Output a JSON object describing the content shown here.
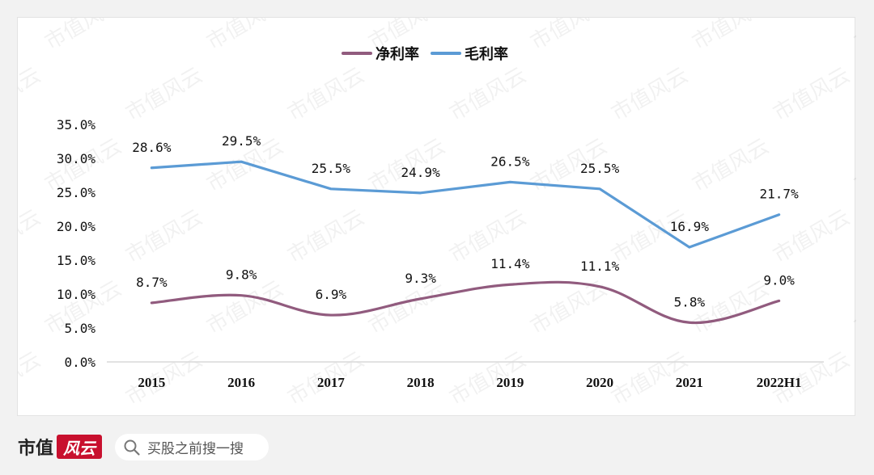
{
  "chart_data": {
    "type": "line",
    "title": "",
    "categories": [
      "2015",
      "2016",
      "2017",
      "2018",
      "2019",
      "2020",
      "2021",
      "2022H1"
    ],
    "series": [
      {
        "name": "净利率",
        "color": "#915b7e",
        "values": [
          8.7,
          9.8,
          6.9,
          9.3,
          11.4,
          11.1,
          5.8,
          9.0
        ],
        "labels": [
          "8.7%",
          "9.8%",
          "6.9%",
          "9.3%",
          "11.4%",
          "11.1%",
          "5.8%",
          "9.0%"
        ]
      },
      {
        "name": "毛利率",
        "color": "#5b9bd5",
        "values": [
          28.6,
          29.5,
          25.5,
          24.9,
          26.5,
          25.5,
          16.9,
          21.7
        ],
        "labels": [
          "28.6%",
          "29.5%",
          "25.5%",
          "24.9%",
          "26.5%",
          "25.5%",
          "16.9%",
          "21.7%"
        ]
      }
    ],
    "ylim": [
      0,
      35
    ],
    "yticks": [
      "0.0%",
      "5.0%",
      "10.0%",
      "15.0%",
      "20.0%",
      "25.0%",
      "30.0%",
      "35.0%"
    ],
    "xlabel": "",
    "ylabel": "",
    "legend_position": "top-center",
    "grid": false
  },
  "watermark": {
    "text": "市值风云"
  },
  "footer": {
    "brand_name": "市值",
    "brand_logo_text": "风云",
    "search_text": "买股之前搜一搜",
    "search_icon": "search-icon"
  }
}
